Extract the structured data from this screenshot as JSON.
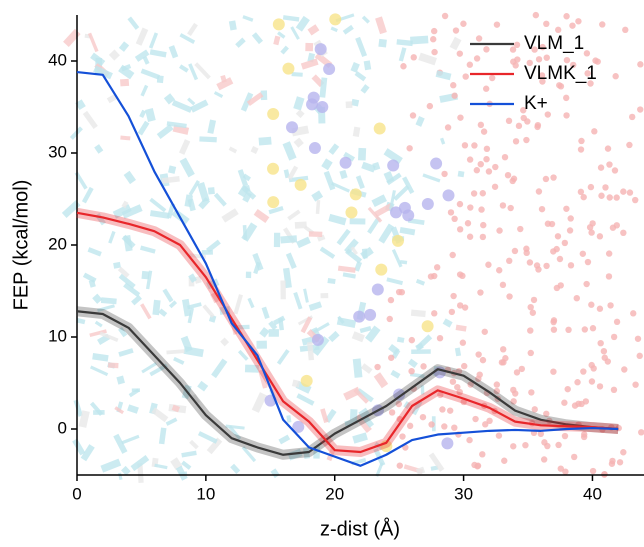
{
  "chart_data": {
    "type": "line",
    "x_label": "z-dist (Å)",
    "y_label": "FEP (kcal/mol)",
    "x": [
      0,
      2,
      4,
      6,
      8,
      10,
      12,
      14,
      16,
      18,
      20,
      22,
      24,
      26,
      28,
      30,
      32,
      34,
      36,
      38,
      40,
      42
    ],
    "series": [
      {
        "name": "VLM_1",
        "color": "#3a3a3a",
        "values": [
          12.8,
          12.5,
          11,
          8,
          5,
          1.5,
          -1,
          -2,
          -2.8,
          -2.5,
          -0.5,
          1,
          2.5,
          4.5,
          6.5,
          5.8,
          4,
          2,
          1,
          0.5,
          0.2,
          0
        ]
      },
      {
        "name": "VLMK_1",
        "color": "#e8262a",
        "values": [
          23.5,
          23,
          22.3,
          21.5,
          20,
          16.5,
          12,
          7.5,
          3,
          0.8,
          -2.3,
          -2.5,
          -1.5,
          2.5,
          4.2,
          3.3,
          2.3,
          0.8,
          0.4,
          0.3,
          0.2,
          0
        ]
      },
      {
        "name": "K+",
        "color": "#1450d8",
        "values": [
          38.8,
          38.5,
          34,
          28,
          23,
          18,
          11.5,
          8,
          1,
          -2,
          -3,
          -4,
          -2.8,
          -1.2,
          -0.6,
          -0.4,
          -0.2,
          -0.1,
          -0.2,
          0,
          0.1,
          0
        ]
      }
    ],
    "xlim": [
      0,
      44
    ],
    "ylim": [
      -5,
      45
    ],
    "xticks": [
      0,
      10,
      20,
      30,
      40
    ],
    "yticks": [
      0,
      10,
      20,
      30,
      40
    ],
    "legend": "upper right",
    "grid": false
  }
}
